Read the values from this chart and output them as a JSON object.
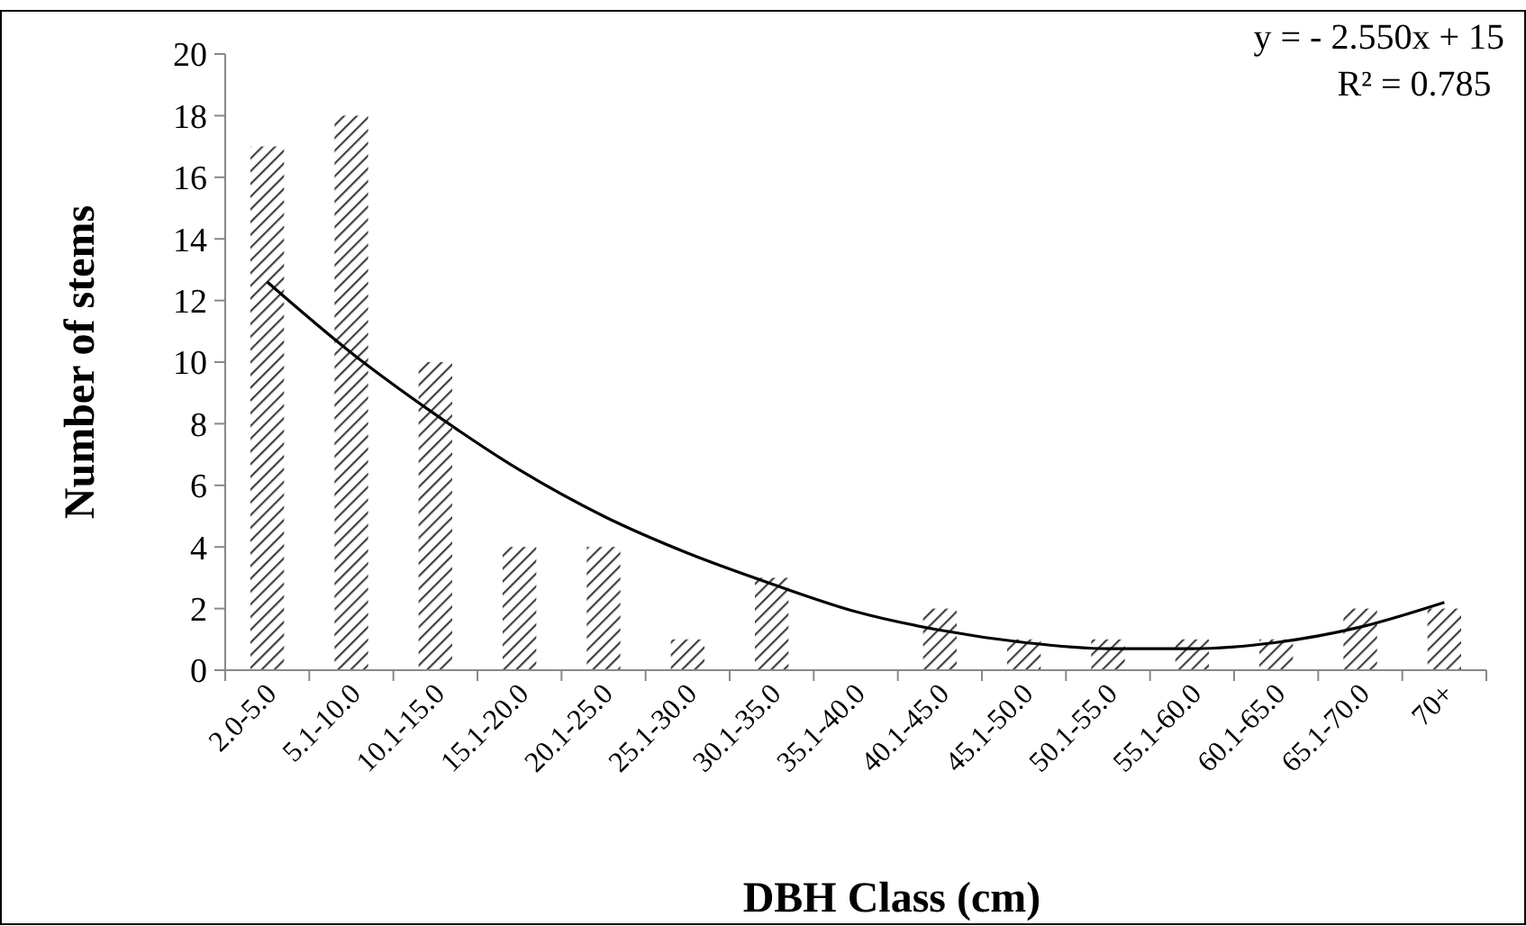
{
  "chart_data": {
    "type": "bar",
    "xlabel": "DBH Class (cm)",
    "ylabel": "Number of stems",
    "categories": [
      "2.0-5.0",
      "5.1-10.0",
      "10.1-15.0",
      "15.1-20.0",
      "20.1-25.0",
      "25.1-30.0",
      "30.1-35.0",
      "35.1-40.0",
      "40.1-45.0",
      "45.1-50.0",
      "50.1-55.0",
      "55.1-60.0",
      "60.1-65.0",
      "65.1-70.0",
      "70+"
    ],
    "series": [
      {
        "color": "#404040",
        "values": [
          17,
          18,
          10,
          4,
          4,
          1,
          3,
          0,
          2,
          1,
          1,
          1,
          1,
          2,
          2
        ]
      },
      {
        "type": "line",
        "color": "#000000",
        "values": [
          12.6,
          10.3,
          8.3,
          6.5,
          5.0,
          3.8,
          2.8,
          1.9,
          1.3,
          0.9,
          0.7,
          0.7,
          0.9,
          1.4,
          2.2
        ]
      }
    ],
    "ylim": [
      0,
      20
    ],
    "yticks": [
      0,
      2,
      4,
      6,
      8,
      10,
      12,
      14,
      16,
      18,
      20
    ],
    "grid": false,
    "marker": "none",
    "annotations": [
      "y =  - 2.550x + 15",
      "R² = 0.785"
    ]
  }
}
